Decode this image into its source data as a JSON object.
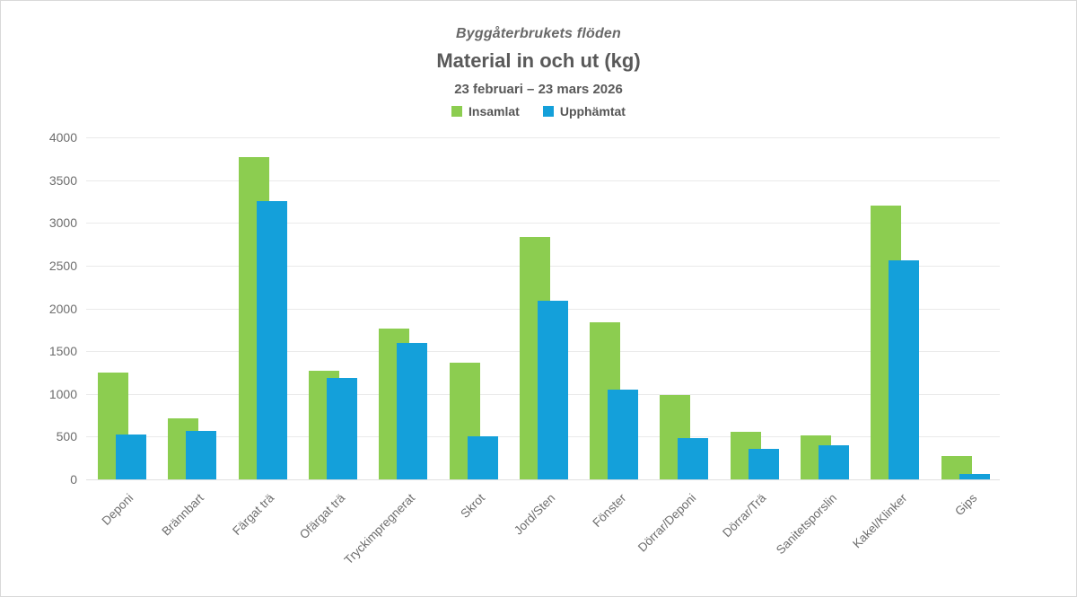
{
  "header": {
    "pretitle": "Byggåterbrukets flöden",
    "title": "Material in och ut (kg)",
    "subtitle": "23 februari – 23 mars 2026"
  },
  "legend": [
    {
      "label": "Insamlat",
      "color": "#8CCD50"
    },
    {
      "label": "Upphämtat",
      "color": "#14A0DA"
    }
  ],
  "chart_data": {
    "type": "bar",
    "pretitle": "Byggåterbrukets flöden",
    "title": "Material in och ut (kg)",
    "subtitle": "23 februari – 23 mars 2026",
    "categories": [
      "Deponi",
      "Brännbart",
      "Färgat trä",
      "Ofärgat trä",
      "Tryckimpregnerat",
      "Skrot",
      "Jord/Sten",
      "Fönster",
      "Dörrar/Deponi",
      "Dörrar/Trä",
      "Sanitetsporslin",
      "Kakel/Klinker",
      "Gips"
    ],
    "series": [
      {
        "name": "Insamlat",
        "color": "#8CCD50",
        "values": [
          1250,
          715,
          3765,
          1275,
          1760,
          1360,
          2840,
          1840,
          990,
          555,
          510,
          3200,
          275
        ]
      },
      {
        "name": "Upphämtat",
        "color": "#14A0DA",
        "values": [
          520,
          570,
          3260,
          1185,
          1600,
          500,
          2090,
          1055,
          480,
          355,
          395,
          2560,
          65
        ]
      }
    ],
    "ylabel": "",
    "xlabel": "",
    "ylim": [
      0,
      4000
    ],
    "yticks": [
      0,
      500,
      1000,
      1500,
      2000,
      2500,
      3000,
      3500,
      4000
    ],
    "grid": true,
    "legend_position": "top",
    "bar_style": "overlapped",
    "xtick_rotation": 45
  }
}
